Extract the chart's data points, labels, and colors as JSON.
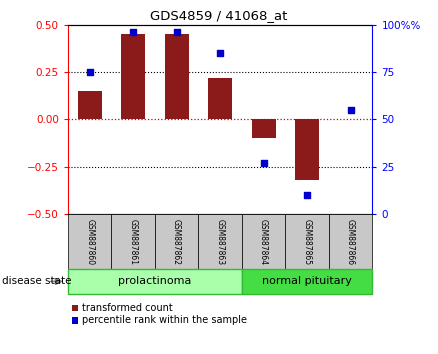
{
  "title": "GDS4859 / 41068_at",
  "samples": [
    "GSM887860",
    "GSM887861",
    "GSM887862",
    "GSM887863",
    "GSM887864",
    "GSM887865",
    "GSM887866"
  ],
  "red_bars": [
    0.15,
    0.45,
    0.45,
    0.22,
    -0.1,
    -0.32,
    0.0
  ],
  "blue_dots_pct": [
    75,
    96,
    96,
    85,
    27,
    10,
    55
  ],
  "ylim_left": [
    -0.5,
    0.5
  ],
  "ylim_right": [
    0,
    100
  ],
  "yticks_left": [
    -0.5,
    -0.25,
    0.0,
    0.25,
    0.5
  ],
  "yticks_right": [
    0,
    25,
    50,
    75,
    100
  ],
  "bar_color": "#8B1A1A",
  "dot_color": "#0000CC",
  "zero_line_color": "#CC0000",
  "prolactinoma_label": "prolactinoma",
  "normal_label": "normal pituitary",
  "group_light_green": "#AAFFAA",
  "group_dark_green": "#44DD44",
  "disease_state_label": "disease state",
  "legend_red_label": "transformed count",
  "legend_blue_label": "percentile rank within the sample",
  "sample_box_color": "#C8C8C8",
  "bar_width": 0.55,
  "title_fontsize": 9.5,
  "tick_fontsize": 7.5,
  "sample_fontsize": 5.5,
  "group_fontsize": 8,
  "legend_fontsize": 7,
  "disease_state_fontsize": 7.5
}
